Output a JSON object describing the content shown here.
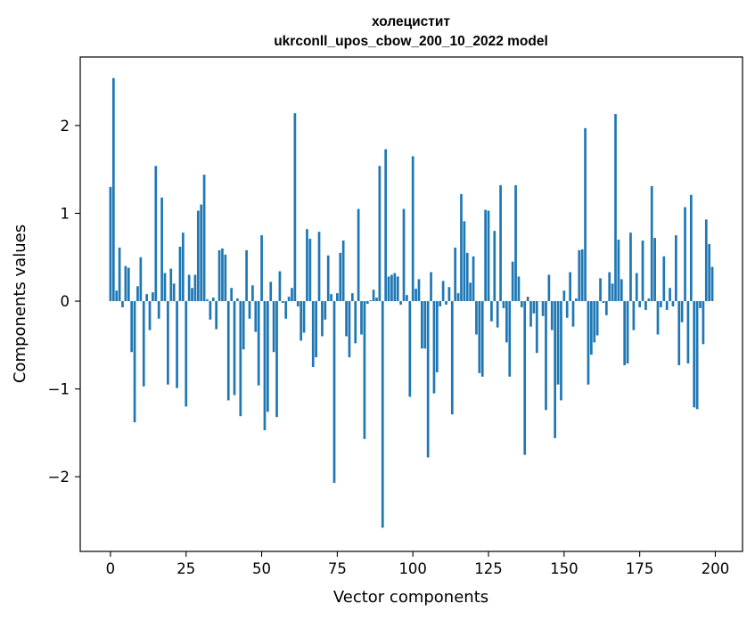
{
  "chart_data": {
    "type": "bar",
    "title": "холецистит",
    "subtitle": "ukrconll_upos_cbow_200_10_2022 model",
    "xlabel": "Vector components",
    "ylabel": "Components values",
    "xlim": [
      -10,
      209
    ],
    "ylim": [
      -2.85,
      2.78
    ],
    "xticks": [
      0,
      25,
      50,
      75,
      100,
      125,
      150,
      175,
      200
    ],
    "yticks": [
      -2,
      -1,
      0,
      1,
      2
    ],
    "bar_color": "#1f77b4",
    "grid": false,
    "legend": "none",
    "x": [
      0,
      1,
      2,
      3,
      4,
      5,
      6,
      7,
      8,
      9,
      10,
      11,
      12,
      13,
      14,
      15,
      16,
      17,
      18,
      19,
      20,
      21,
      22,
      23,
      24,
      25,
      26,
      27,
      28,
      29,
      30,
      31,
      32,
      33,
      34,
      35,
      36,
      37,
      38,
      39,
      40,
      41,
      42,
      43,
      44,
      45,
      46,
      47,
      48,
      49,
      50,
      51,
      52,
      53,
      54,
      55,
      56,
      57,
      58,
      59,
      60,
      61,
      62,
      63,
      64,
      65,
      66,
      67,
      68,
      69,
      70,
      71,
      72,
      73,
      74,
      75,
      76,
      77,
      78,
      79,
      80,
      81,
      82,
      83,
      84,
      85,
      86,
      87,
      88,
      89,
      90,
      91,
      92,
      93,
      94,
      95,
      96,
      97,
      98,
      99,
      100,
      101,
      102,
      103,
      104,
      105,
      106,
      107,
      108,
      109,
      110,
      111,
      112,
      113,
      114,
      115,
      116,
      117,
      118,
      119,
      120,
      121,
      122,
      123,
      124,
      125,
      126,
      127,
      128,
      129,
      130,
      131,
      132,
      133,
      134,
      135,
      136,
      137,
      138,
      139,
      140,
      141,
      142,
      143,
      144,
      145,
      146,
      147,
      148,
      149,
      150,
      151,
      152,
      153,
      154,
      155,
      156,
      157,
      158,
      159,
      160,
      161,
      162,
      163,
      164,
      165,
      166,
      167,
      168,
      169,
      170,
      171,
      172,
      173,
      174,
      175,
      176,
      177,
      178,
      179,
      180,
      181,
      182,
      183,
      184,
      185,
      186,
      187,
      188,
      189,
      190,
      191,
      192,
      193,
      194,
      195,
      196,
      197,
      198,
      199
    ],
    "values": [
      1.3,
      2.54,
      0.12,
      0.61,
      -0.07,
      0.4,
      0.38,
      -0.58,
      -1.38,
      0.17,
      0.5,
      -0.97,
      0.08,
      -0.33,
      0.1,
      1.54,
      -0.2,
      1.18,
      0.32,
      -0.95,
      0.37,
      0.2,
      -0.99,
      0.62,
      0.78,
      -1.2,
      0.3,
      0.15,
      0.3,
      1.03,
      1.1,
      1.44,
      0.02,
      -0.21,
      0.04,
      -0.32,
      0.58,
      0.6,
      0.53,
      -1.13,
      0.15,
      -1.07,
      0.03,
      -1.31,
      -0.55,
      0.58,
      -0.2,
      0.18,
      -0.35,
      -0.96,
      0.75,
      -1.47,
      -1.26,
      0.22,
      -0.58,
      -1.32,
      0.34,
      -0.02,
      -0.2,
      0.05,
      0.15,
      2.14,
      -0.06,
      -0.45,
      -0.36,
      0.82,
      0.71,
      -0.75,
      -0.64,
      0.79,
      -0.4,
      -0.21,
      0.52,
      0.08,
      -2.07,
      0.09,
      0.55,
      0.69,
      -0.4,
      -0.64,
      0.09,
      -0.48,
      1.05,
      -0.38,
      -1.57,
      -0.03,
      0.01,
      0.13,
      0.04,
      1.54,
      -2.58,
      1.73,
      0.28,
      0.3,
      0.32,
      0.28,
      -0.04,
      1.05,
      0.07,
      -1.09,
      1.65,
      0.14,
      0.25,
      -0.54,
      -0.54,
      -1.78,
      0.33,
      -1.05,
      -0.81,
      -0.06,
      0.23,
      -0.04,
      0.16,
      -1.29,
      0.61,
      0.09,
      1.22,
      0.91,
      0.55,
      0.21,
      0.51,
      -0.38,
      -0.82,
      -0.86,
      1.04,
      1.03,
      -0.23,
      0.8,
      -0.3,
      1.32,
      -0.08,
      -0.47,
      -0.86,
      0.45,
      1.32,
      0.28,
      -0.07,
      -1.75,
      0.05,
      -0.29,
      -0.14,
      -0.59,
      0.0,
      -0.17,
      -1.24,
      0.3,
      -0.33,
      -1.56,
      -0.95,
      -1.13,
      0.12,
      -0.19,
      0.33,
      -0.29,
      0.03,
      0.58,
      0.59,
      1.97,
      -0.95,
      -0.61,
      -0.47,
      -0.39,
      0.26,
      -0.02,
      -0.16,
      0.33,
      0.2,
      2.13,
      0.7,
      0.25,
      -0.73,
      -0.71,
      0.78,
      -0.33,
      0.32,
      -0.07,
      0.69,
      -0.1,
      0.03,
      1.31,
      0.72,
      -0.38,
      -0.07,
      0.51,
      -0.1,
      0.15,
      -0.06,
      0.75,
      -0.73,
      -0.24,
      1.07,
      -0.71,
      1.21,
      -1.21,
      -1.23,
      -0.08,
      -0.49,
      0.93,
      0.65,
      0.39
    ]
  }
}
